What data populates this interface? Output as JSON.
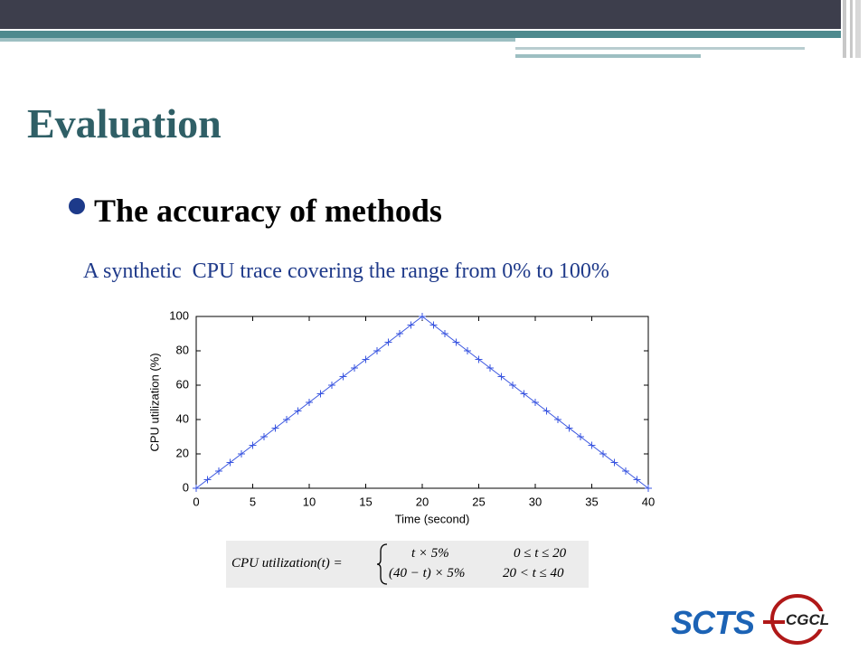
{
  "slide": {
    "title": "Evaluation",
    "bullet": "The accuracy of methods",
    "subtitle": "A synthetic  CPU trace covering the range from 0% to 100%",
    "formula": {
      "lhs": "CPU utilization(t) =",
      "cases": [
        [
          "t × 5%",
          "0 ≤ t ≤ 20"
        ],
        [
          "(40 − t) × 5%",
          "20 < t ≤ 40"
        ]
      ]
    },
    "logos": [
      "SCTS",
      "CGCL"
    ]
  },
  "chart_data": {
    "type": "line",
    "x_label": "Time (second)",
    "y_label": "CPU utilization (%)",
    "x": [
      0,
      1,
      2,
      3,
      4,
      5,
      6,
      7,
      8,
      9,
      10,
      11,
      12,
      13,
      14,
      15,
      16,
      17,
      18,
      19,
      20,
      21,
      22,
      23,
      24,
      25,
      26,
      27,
      28,
      29,
      30,
      31,
      32,
      33,
      34,
      35,
      36,
      37,
      38,
      39,
      40
    ],
    "series": [
      {
        "color": "#3a56e0",
        "marker": "+",
        "values": [
          0,
          5,
          10,
          15,
          20,
          25,
          30,
          35,
          40,
          45,
          50,
          55,
          60,
          65,
          70,
          75,
          80,
          85,
          90,
          95,
          100,
          95,
          90,
          85,
          80,
          75,
          70,
          65,
          60,
          55,
          50,
          45,
          40,
          35,
          30,
          25,
          20,
          15,
          10,
          5,
          0
        ]
      }
    ],
    "xlim": [
      0,
      40
    ],
    "xticks": [
      0,
      5,
      10,
      15,
      20,
      25,
      30,
      35,
      40
    ],
    "ylim": [
      0,
      100
    ],
    "yticks": [
      0,
      20,
      40,
      60,
      80,
      100
    ],
    "grid": false
  }
}
